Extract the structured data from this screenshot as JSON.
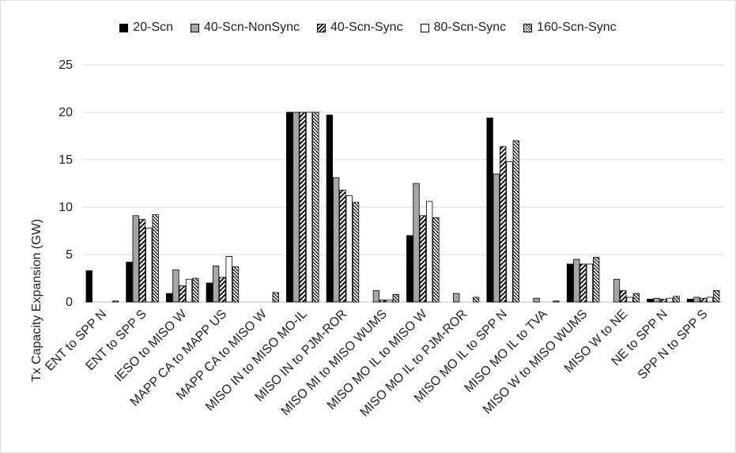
{
  "chart_data": {
    "type": "bar",
    "title": "",
    "xlabel": "",
    "ylabel": "Tx Capacity Expansion (GW)",
    "ylim": [
      0,
      25
    ],
    "yticks": [
      0,
      5,
      10,
      15,
      20,
      25
    ],
    "grid": true,
    "legend_position": "top",
    "categories": [
      "ENT to SPP N",
      "ENT to SPP S",
      "IESO to MISO W",
      "MAPP CA to MAPP US",
      "MAPP CA to MISO W",
      "MISO IN to MISO MO-IL",
      "MISO IN to PJM-ROR",
      "MISO MI to MISO WUMS",
      "MISO MO IL to MISO W",
      "MISO MO IL to PJM-ROR",
      "MISO MO IL to SPP N",
      "MISO MO IL to TVA",
      "MISO W to MISO WUMS",
      "MISO W to NE",
      "NE to SPP N",
      "SPP N to SPP S"
    ],
    "series": [
      {
        "name": "20-Scn",
        "pattern": "solid-black",
        "values": [
          3.3,
          4.2,
          0.9,
          2.0,
          0,
          20.0,
          19.7,
          0,
          7.0,
          0,
          19.4,
          0,
          4.0,
          0,
          0.3,
          0.3
        ]
      },
      {
        "name": "40-Scn-NonSync",
        "pattern": "solid-gray",
        "values": [
          0,
          9.1,
          3.4,
          3.8,
          0,
          20.0,
          13.1,
          1.2,
          12.5,
          0.9,
          13.5,
          0.4,
          4.5,
          2.4,
          0.4,
          0.5
        ]
      },
      {
        "name": "40-Scn-Sync",
        "pattern": "diagonal-hatch",
        "values": [
          0,
          8.7,
          1.7,
          2.6,
          0,
          20.0,
          11.8,
          0.2,
          9.1,
          0,
          16.4,
          0,
          4.0,
          1.2,
          0.3,
          0.4
        ]
      },
      {
        "name": "80-Scn-Sync",
        "pattern": "white",
        "values": [
          0,
          7.8,
          2.4,
          4.8,
          0,
          20.0,
          11.2,
          0.2,
          10.6,
          0,
          14.8,
          0,
          4.0,
          0.5,
          0.4,
          0.5
        ]
      },
      {
        "name": "160-Scn-Sync",
        "pattern": "dense-hatch",
        "values": [
          0.1,
          9.2,
          2.5,
          3.7,
          1.0,
          20.0,
          10.5,
          0.8,
          8.9,
          0.5,
          17.0,
          0.1,
          4.7,
          0.9,
          0.6,
          1.2
        ]
      }
    ]
  }
}
